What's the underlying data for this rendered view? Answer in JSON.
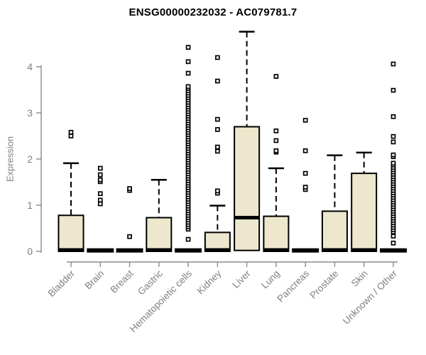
{
  "chart_data": {
    "type": "boxplot",
    "title": "ENSG00000232032 - AC079781.7",
    "ylabel": "Expression",
    "xlabel": "",
    "yticks": [
      0,
      1,
      2,
      3,
      4
    ],
    "ylim": [
      0,
      4.9
    ],
    "grid": false,
    "legend": "none",
    "colors": {
      "box_fill": "#EDE8CD",
      "box_border": "#000000",
      "median": "#000000",
      "whisker": "#000000",
      "outlier_fill": "#FFFFFF",
      "outlier_border": "#000000",
      "axis": "#8A8A8A",
      "tick_label": "#808080",
      "title": "#000000",
      "background": "#FFFFFF"
    },
    "categories": [
      "Bladder",
      "Brain",
      "Breast",
      "Gastric",
      "Hematopoietic cells",
      "Kidney",
      "Liver",
      "Lung",
      "Pancreas",
      "Prostate",
      "Skin",
      "Unknown / Other"
    ],
    "series": [
      {
        "label": "Bladder",
        "q1": 0,
        "median": 0.03,
        "q3": 0.78,
        "whisker_low": 0,
        "whisker_high": 1.91,
        "outliers": [
          2.5,
          2.58
        ]
      },
      {
        "label": "Brain",
        "q1": 0,
        "median": 0.02,
        "q3": 0.04,
        "whisker_low": 0,
        "whisker_high": 0.04,
        "outliers": [
          1.03,
          1.11,
          1.25,
          1.51,
          1.55,
          1.66,
          1.8
        ]
      },
      {
        "label": "Breast",
        "q1": 0,
        "median": 0.02,
        "q3": 0.04,
        "whisker_low": 0,
        "whisker_high": 0.04,
        "outliers": [
          0.32,
          1.32,
          1.36
        ]
      },
      {
        "label": "Gastric",
        "q1": 0,
        "median": 0.03,
        "q3": 0.73,
        "whisker_low": 0,
        "whisker_high": 1.55,
        "outliers": []
      },
      {
        "label": "Hematopoietic cells",
        "q1": 0,
        "median": 0.02,
        "q3": 0.04,
        "whisker_low": 0,
        "whisker_high": 0.04,
        "outliers": [
          0.26,
          0.48,
          0.53,
          0.58,
          0.63,
          0.68,
          0.73,
          0.78,
          0.83,
          0.88,
          0.93,
          0.98,
          1.03,
          1.08,
          1.13,
          1.18,
          1.23,
          1.28,
          1.33,
          1.38,
          1.43,
          1.48,
          1.53,
          1.58,
          1.63,
          1.68,
          1.73,
          1.78,
          1.83,
          1.88,
          1.93,
          1.98,
          2.03,
          2.08,
          2.13,
          2.18,
          2.23,
          2.28,
          2.33,
          2.38,
          2.43,
          2.48,
          2.53,
          2.58,
          2.63,
          2.68,
          2.73,
          2.78,
          2.83,
          2.88,
          2.93,
          2.98,
          3.03,
          3.08,
          3.13,
          3.18,
          3.23,
          3.28,
          3.33,
          3.38,
          3.43,
          3.48,
          3.53,
          3.57,
          3.86,
          4.11,
          4.42
        ]
      },
      {
        "label": "Kidney",
        "q1": 0,
        "median": 0.03,
        "q3": 0.41,
        "whisker_low": 0,
        "whisker_high": 0.99,
        "outliers": [
          1.26,
          1.31,
          2.17,
          2.26,
          2.64,
          2.86,
          3.69,
          4.2
        ]
      },
      {
        "label": "Liver",
        "q1": 0.02,
        "median": 0.73,
        "q3": 2.7,
        "whisker_low": 0.02,
        "whisker_high": 4.76,
        "outliers": []
      },
      {
        "label": "Lung",
        "q1": 0,
        "median": 0.03,
        "q3": 0.76,
        "whisker_low": 0,
        "whisker_high": 1.8,
        "outliers": [
          2.15,
          2.18,
          2.4,
          2.61,
          3.79
        ]
      },
      {
        "label": "Pancreas",
        "q1": 0,
        "median": 0.02,
        "q3": 0.04,
        "whisker_low": 0,
        "whisker_high": 0.04,
        "outliers": [
          1.34,
          1.39,
          1.69,
          2.18,
          2.84
        ]
      },
      {
        "label": "Prostate",
        "q1": 0,
        "median": 0.03,
        "q3": 0.87,
        "whisker_low": 0,
        "whisker_high": 2.08,
        "outliers": []
      },
      {
        "label": "Skin",
        "q1": 0,
        "median": 0.03,
        "q3": 1.69,
        "whisker_low": 0,
        "whisker_high": 2.14,
        "outliers": []
      },
      {
        "label": "Unknown / Other",
        "q1": 0,
        "median": 0.02,
        "q3": 0.04,
        "whisker_low": 0,
        "whisker_high": 0.04,
        "outliers": [
          0.18,
          0.33,
          0.42,
          0.47,
          0.52,
          0.57,
          0.62,
          0.67,
          0.72,
          0.77,
          0.82,
          0.87,
          0.92,
          0.97,
          1.02,
          1.07,
          1.12,
          1.17,
          1.22,
          1.27,
          1.32,
          1.37,
          1.42,
          1.47,
          1.52,
          1.57,
          1.62,
          1.67,
          1.72,
          1.77,
          1.82,
          1.87,
          1.91,
          2.05,
          2.09,
          2.37,
          2.49,
          2.92,
          3.49,
          4.06
        ]
      }
    ]
  }
}
